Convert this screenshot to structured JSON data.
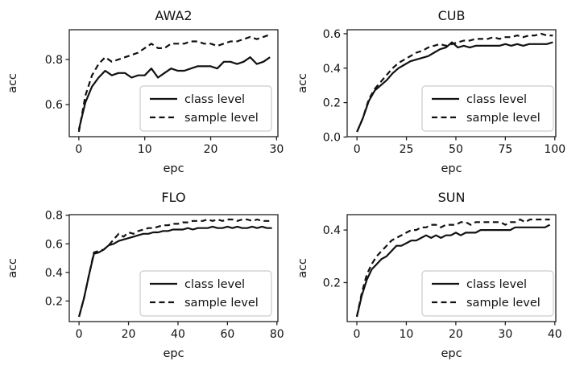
{
  "figure": {
    "background": "#ffffff",
    "text_color": "#111111",
    "spine_color": "#222222",
    "curve_color": "#111111",
    "legend_border_color": "#cccccc",
    "legend_background": "#ffffff",
    "legend_labels": [
      "class level",
      "sample level"
    ]
  },
  "chart_data": [
    {
      "type": "line",
      "title": "AWA2",
      "xlabel": "epc",
      "ylabel": "acc",
      "grid": false,
      "legend_position": "lower right",
      "xlim": [
        -1.45,
        30.2
      ],
      "ylim": [
        0.4585,
        0.9315
      ],
      "xticks": [
        0,
        10,
        20,
        30
      ],
      "yticks": [
        0.6,
        0.8
      ],
      "x": [
        0,
        1,
        2,
        3,
        4,
        5,
        6,
        7,
        8,
        9,
        10,
        11,
        12,
        13,
        14,
        15,
        16,
        17,
        18,
        19,
        20,
        21,
        22,
        23,
        24,
        25,
        26,
        27,
        28,
        29
      ],
      "series": [
        {
          "name": "class level",
          "style": "solid",
          "values": [
            0.49,
            0.61,
            0.68,
            0.72,
            0.75,
            0.73,
            0.74,
            0.74,
            0.72,
            0.73,
            0.73,
            0.76,
            0.72,
            0.74,
            0.76,
            0.75,
            0.75,
            0.76,
            0.77,
            0.77,
            0.77,
            0.76,
            0.79,
            0.79,
            0.78,
            0.79,
            0.81,
            0.78,
            0.79,
            0.81
          ]
        },
        {
          "name": "sample level",
          "style": "dashed",
          "values": [
            0.48,
            0.64,
            0.73,
            0.78,
            0.81,
            0.79,
            0.8,
            0.81,
            0.82,
            0.83,
            0.85,
            0.87,
            0.85,
            0.85,
            0.87,
            0.87,
            0.87,
            0.88,
            0.88,
            0.87,
            0.87,
            0.86,
            0.87,
            0.88,
            0.88,
            0.89,
            0.9,
            0.89,
            0.9,
            0.91
          ]
        }
      ]
    },
    {
      "type": "line",
      "title": "CUB",
      "xlabel": "epc",
      "ylabel": "acc",
      "grid": false,
      "legend_position": "lower right",
      "xlim": [
        -4.95,
        100.5
      ],
      "ylim": [
        0.002,
        0.623
      ],
      "xticks": [
        0,
        25,
        50,
        75,
        100
      ],
      "yticks": [
        0.0,
        0.2,
        0.4,
        0.6
      ],
      "x": [
        0,
        3,
        6,
        9,
        12,
        15,
        18,
        21,
        24,
        27,
        30,
        33,
        36,
        39,
        42,
        45,
        48,
        51,
        54,
        57,
        60,
        63,
        66,
        69,
        72,
        75,
        78,
        81,
        84,
        87,
        90,
        93,
        96,
        99
      ],
      "series": [
        {
          "name": "class level",
          "style": "solid",
          "values": [
            0.03,
            0.11,
            0.21,
            0.27,
            0.3,
            0.33,
            0.37,
            0.4,
            0.42,
            0.44,
            0.45,
            0.46,
            0.47,
            0.49,
            0.51,
            0.52,
            0.55,
            0.52,
            0.53,
            0.52,
            0.53,
            0.53,
            0.53,
            0.53,
            0.53,
            0.54,
            0.53,
            0.54,
            0.53,
            0.54,
            0.54,
            0.54,
            0.54,
            0.55
          ]
        },
        {
          "name": "sample level",
          "style": "dashed",
          "values": [
            0.03,
            0.11,
            0.22,
            0.28,
            0.32,
            0.36,
            0.4,
            0.43,
            0.45,
            0.47,
            0.49,
            0.5,
            0.52,
            0.53,
            0.54,
            0.53,
            0.54,
            0.55,
            0.56,
            0.56,
            0.57,
            0.57,
            0.57,
            0.58,
            0.57,
            0.58,
            0.58,
            0.59,
            0.58,
            0.59,
            0.59,
            0.6,
            0.59,
            0.59
          ]
        }
      ]
    },
    {
      "type": "line",
      "title": "FLO",
      "xlabel": "epc",
      "ylabel": "acc",
      "grid": false,
      "legend_position": "lower right",
      "xlim": [
        -3.95,
        80.4
      ],
      "ylim": [
        0.056,
        0.804
      ],
      "xticks": [
        0,
        20,
        40,
        60,
        80
      ],
      "yticks": [
        0.2,
        0.4,
        0.6,
        0.8
      ],
      "x": [
        0,
        2,
        4,
        6,
        8,
        10,
        12,
        14,
        16,
        18,
        20,
        22,
        24,
        26,
        28,
        30,
        32,
        34,
        36,
        38,
        40,
        42,
        44,
        46,
        48,
        50,
        52,
        54,
        56,
        58,
        60,
        62,
        64,
        66,
        68,
        70,
        72,
        74,
        76,
        78
      ],
      "series": [
        {
          "name": "class level",
          "style": "solid",
          "values": [
            0.09,
            0.22,
            0.38,
            0.53,
            0.54,
            0.56,
            0.59,
            0.6,
            0.62,
            0.63,
            0.64,
            0.65,
            0.66,
            0.67,
            0.67,
            0.68,
            0.68,
            0.69,
            0.69,
            0.7,
            0.7,
            0.7,
            0.71,
            0.7,
            0.71,
            0.71,
            0.71,
            0.72,
            0.71,
            0.71,
            0.72,
            0.71,
            0.72,
            0.71,
            0.71,
            0.72,
            0.71,
            0.72,
            0.71,
            0.71
          ]
        },
        {
          "name": "sample level",
          "style": "dashed",
          "values": [
            0.09,
            0.22,
            0.38,
            0.54,
            0.55,
            0.56,
            0.59,
            0.63,
            0.67,
            0.65,
            0.68,
            0.67,
            0.69,
            0.7,
            0.71,
            0.71,
            0.72,
            0.73,
            0.73,
            0.74,
            0.74,
            0.75,
            0.75,
            0.76,
            0.76,
            0.76,
            0.77,
            0.76,
            0.77,
            0.76,
            0.77,
            0.77,
            0.76,
            0.77,
            0.77,
            0.76,
            0.77,
            0.76,
            0.76,
            0.76
          ]
        }
      ]
    },
    {
      "type": "line",
      "title": "SUN",
      "xlabel": "epc",
      "ylabel": "acc",
      "grid": false,
      "legend_position": "lower right",
      "xlim": [
        -1.95,
        40.2
      ],
      "ylim": [
        0.0515,
        0.4585
      ],
      "xticks": [
        0,
        10,
        20,
        30,
        40
      ],
      "yticks": [
        0.2,
        0.4
      ],
      "x": [
        0,
        1,
        2,
        3,
        4,
        5,
        6,
        7,
        8,
        9,
        10,
        11,
        12,
        13,
        14,
        15,
        16,
        17,
        18,
        19,
        20,
        21,
        22,
        23,
        24,
        25,
        26,
        27,
        28,
        29,
        30,
        31,
        32,
        33,
        34,
        35,
        36,
        37,
        38,
        39
      ],
      "series": [
        {
          "name": "class level",
          "style": "solid",
          "values": [
            0.07,
            0.15,
            0.21,
            0.25,
            0.27,
            0.29,
            0.3,
            0.32,
            0.34,
            0.34,
            0.35,
            0.36,
            0.36,
            0.37,
            0.38,
            0.37,
            0.38,
            0.37,
            0.38,
            0.38,
            0.39,
            0.38,
            0.39,
            0.39,
            0.39,
            0.4,
            0.4,
            0.4,
            0.4,
            0.4,
            0.4,
            0.4,
            0.41,
            0.41,
            0.41,
            0.41,
            0.41,
            0.41,
            0.41,
            0.42
          ]
        },
        {
          "name": "sample level",
          "style": "dashed",
          "values": [
            0.07,
            0.16,
            0.23,
            0.27,
            0.3,
            0.32,
            0.34,
            0.36,
            0.37,
            0.38,
            0.39,
            0.4,
            0.4,
            0.41,
            0.41,
            0.42,
            0.42,
            0.41,
            0.42,
            0.42,
            0.42,
            0.43,
            0.43,
            0.42,
            0.43,
            0.43,
            0.43,
            0.43,
            0.43,
            0.43,
            0.42,
            0.43,
            0.43,
            0.44,
            0.43,
            0.44,
            0.44,
            0.44,
            0.44,
            0.44
          ]
        }
      ]
    }
  ]
}
